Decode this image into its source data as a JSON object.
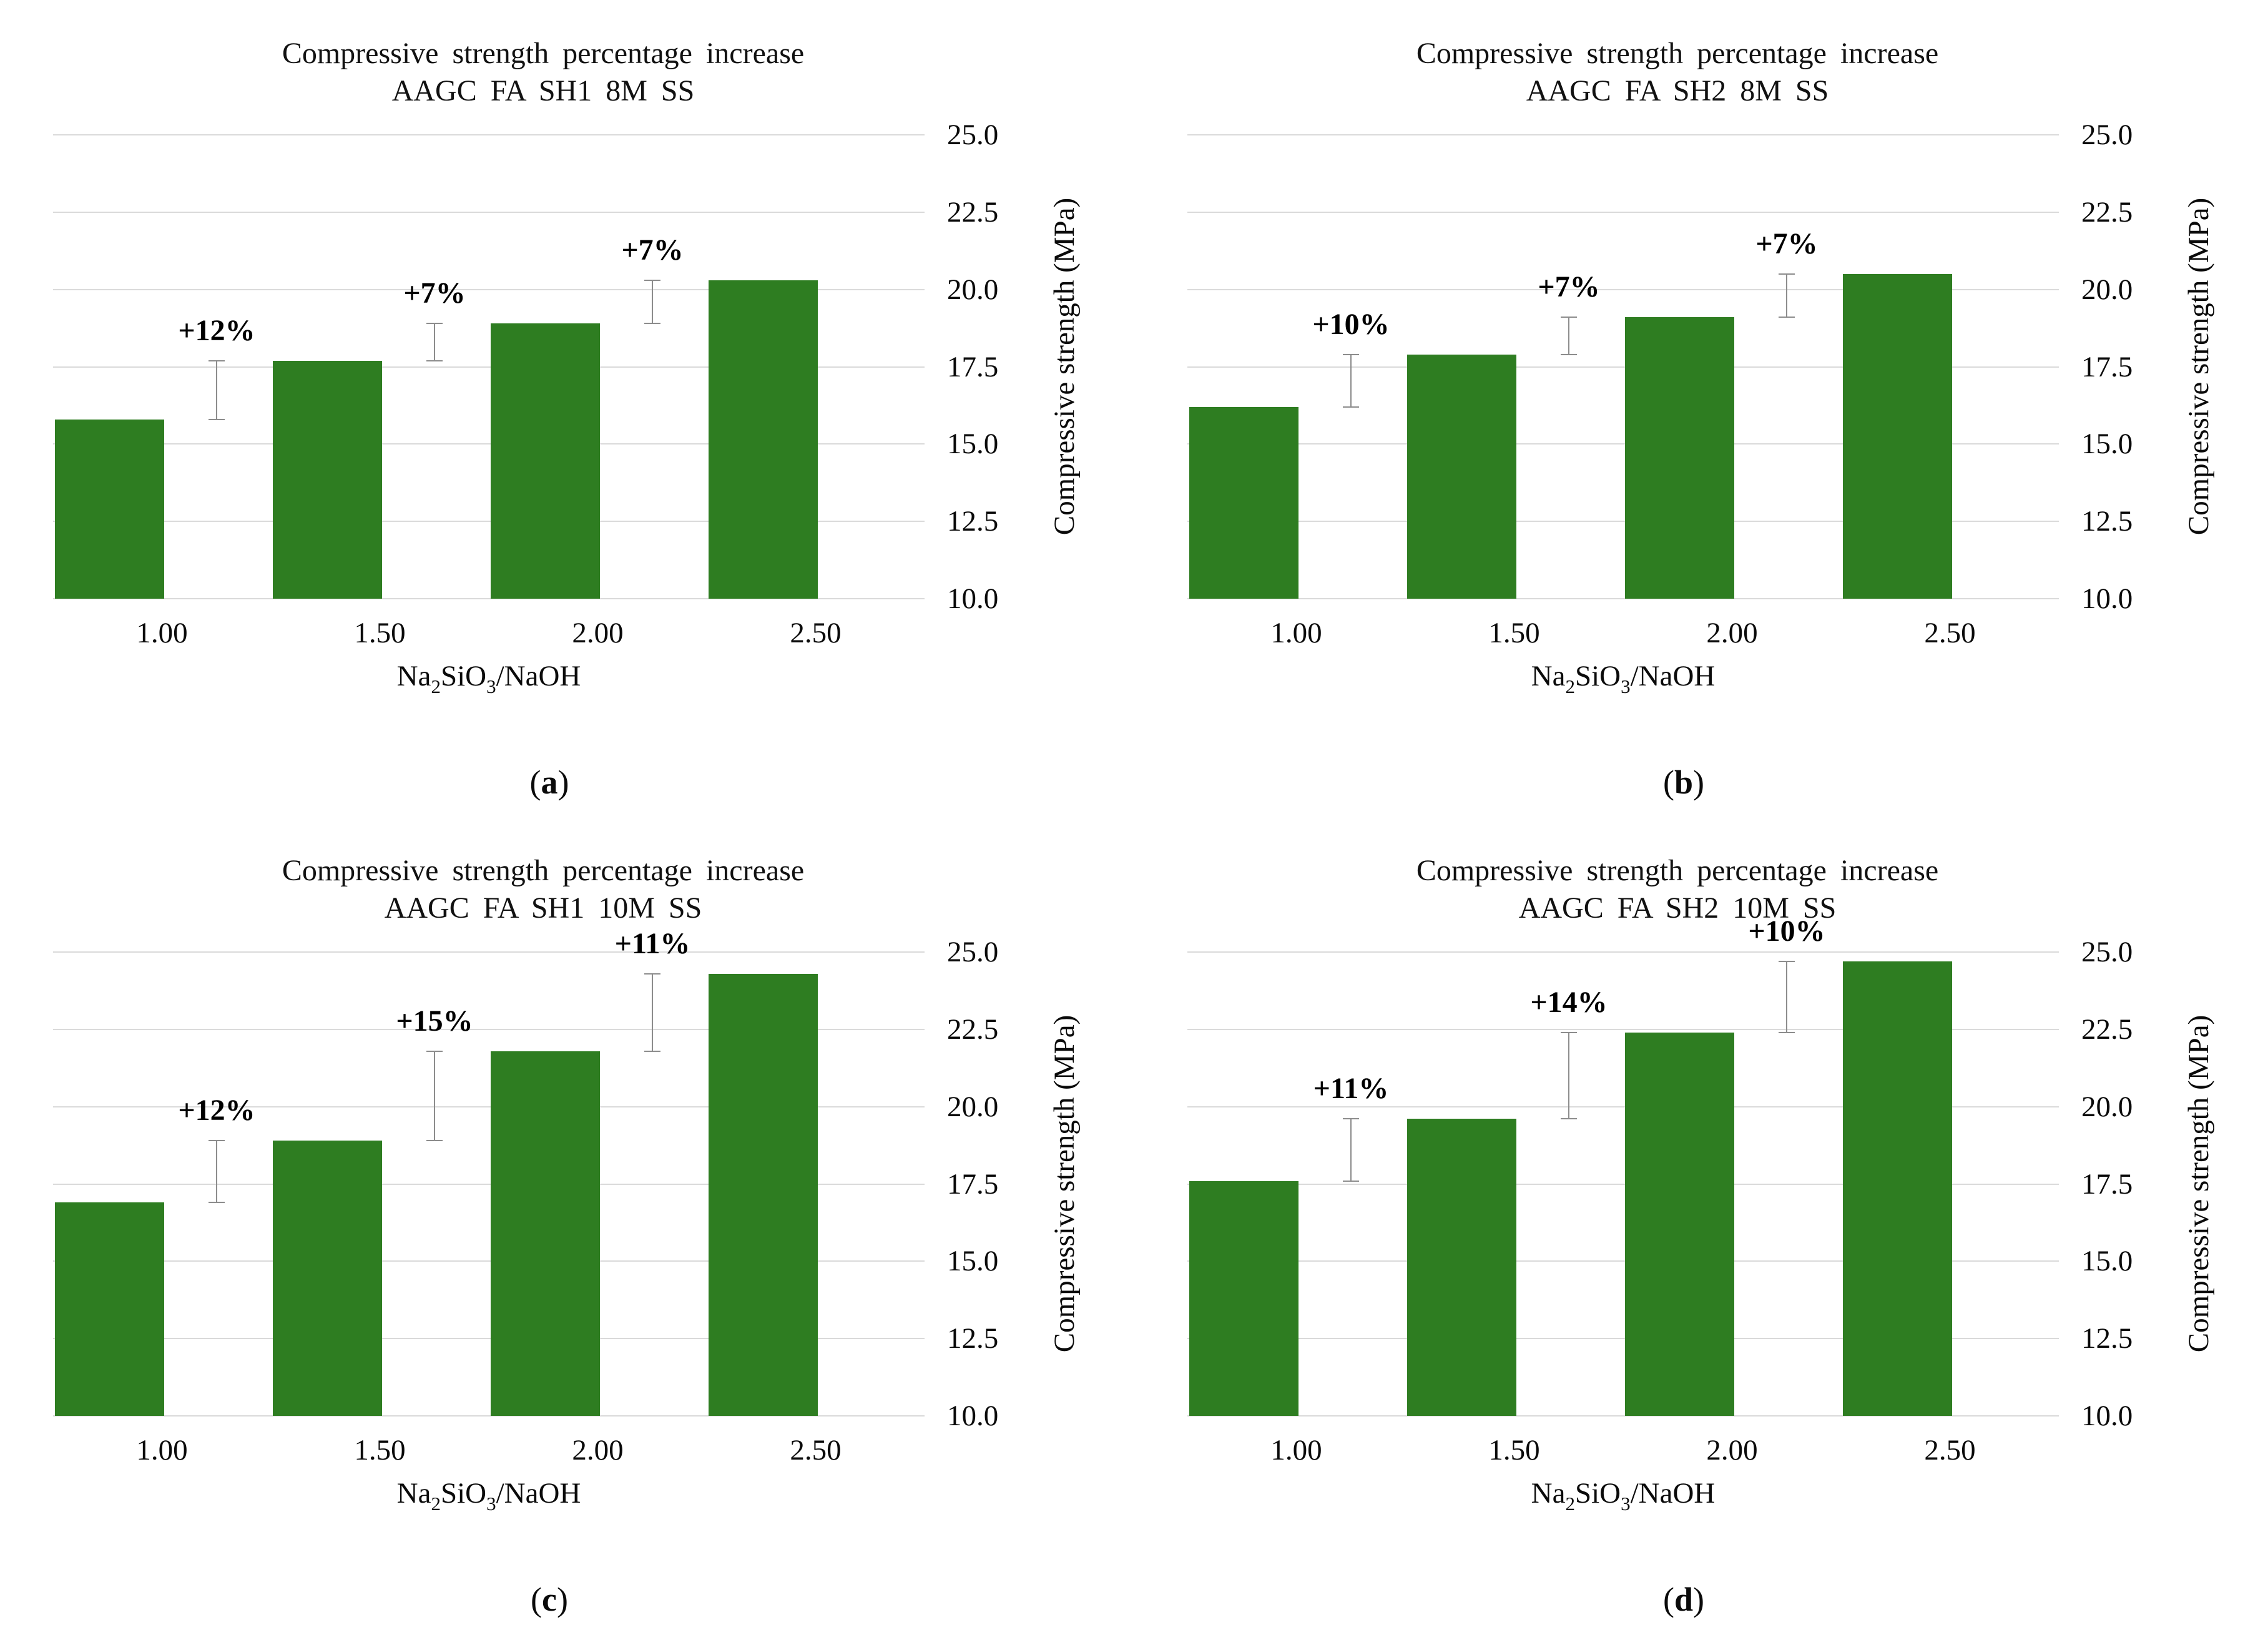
{
  "colors": {
    "bar_green": "#2e7d21",
    "gridline_gray": "#dadada",
    "error_bar_gray": "#8c8c8c",
    "text_black": "#000000"
  },
  "axes": {
    "y_label": "Compressive strength (MPa)",
    "y_ticks": [
      "25.0",
      "22.5",
      "20.0",
      "17.5",
      "15.0",
      "12.5",
      "10.0"
    ],
    "y_min": 10,
    "y_max": 25,
    "x_ticks": [
      "1.00",
      "1.50",
      "2.00",
      "2.50"
    ],
    "x_label_parts": [
      {
        "text": "Na",
        "sub": false
      },
      {
        "text": "2",
        "sub": true
      },
      {
        "text": "SiO",
        "sub": false
      },
      {
        "text": "3",
        "sub": true
      },
      {
        "text": "/NaOH",
        "sub": false
      }
    ]
  },
  "chart_data": [
    {
      "type": "bar",
      "panel": {
        "open": "(",
        "letter": "a",
        "close": ")"
      },
      "title_line1": "Compressive strength percentage increase",
      "title_line2": "AAGC FA SH1 8M SS",
      "categories": [
        "1.00",
        "1.50",
        "2.00",
        "2.50"
      ],
      "values": [
        15.8,
        17.7,
        18.9,
        20.3
      ],
      "increase_labels": [
        "+12%",
        "+7%",
        "+7%"
      ],
      "xlabel": "Na2SiO3/NaOH",
      "ylabel": "Compressive strength (MPa)",
      "ylim": [
        10,
        25
      ],
      "grid": true,
      "legend": "none"
    },
    {
      "type": "bar",
      "panel": {
        "open": "(",
        "letter": "b",
        "close": ")"
      },
      "title_line1": "Compressive strength percentage increase",
      "title_line2": "AAGC FA SH2 8M SS",
      "categories": [
        "1.00",
        "1.50",
        "2.00",
        "2.50"
      ],
      "values": [
        16.2,
        17.9,
        19.1,
        20.5
      ],
      "increase_labels": [
        "+10%",
        "+7%",
        "+7%"
      ],
      "xlabel": "Na2SiO3/NaOH",
      "ylabel": "Compressive strength (MPa)",
      "ylim": [
        10,
        25
      ],
      "grid": true,
      "legend": "none"
    },
    {
      "type": "bar",
      "panel": {
        "open": "(",
        "letter": "c",
        "close": ")"
      },
      "title_line1": "Compressive strength percentage increase",
      "title_line2": "AAGC FA SH1 10M SS",
      "categories": [
        "1.00",
        "1.50",
        "2.00",
        "2.50"
      ],
      "values": [
        16.9,
        18.9,
        21.8,
        24.3
      ],
      "increase_labels": [
        "+12%",
        "+15%",
        "+11%"
      ],
      "xlabel": "Na2SiO3/NaOH",
      "ylabel": "Compressive strength (MPa)",
      "ylim": [
        10,
        25
      ],
      "grid": true,
      "legend": "none"
    },
    {
      "type": "bar",
      "panel": {
        "open": "(",
        "letter": "d",
        "close": ")"
      },
      "title_line1": "Compressive strength percentage increase",
      "title_line2": "AAGC FA SH2 10M SS",
      "categories": [
        "1.00",
        "1.50",
        "2.00",
        "2.50"
      ],
      "values": [
        17.6,
        19.6,
        22.4,
        24.7
      ],
      "increase_labels": [
        "+11%",
        "+14%",
        "+10%"
      ],
      "xlabel": "Na2SiO3/NaOH",
      "ylabel": "Compressive strength (MPa)",
      "ylim": [
        10,
        25
      ],
      "grid": true,
      "legend": "none"
    }
  ]
}
